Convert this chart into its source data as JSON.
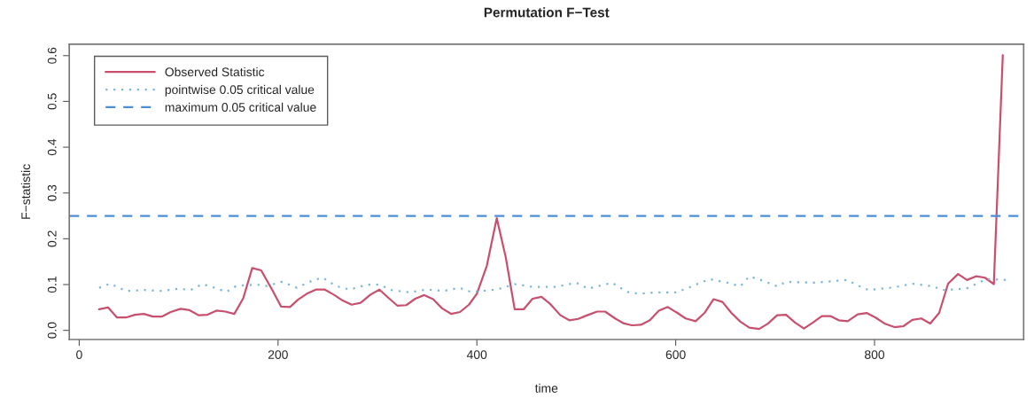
{
  "chart_data": {
    "type": "line",
    "title": "Permutation F−Test",
    "xlabel": "time",
    "ylabel": "F−statistic",
    "xlim": [
      -10,
      950
    ],
    "ylim": [
      -0.02,
      0.625
    ],
    "xticks": [
      0,
      200,
      400,
      600,
      800
    ],
    "yticks": [
      {
        "value": 0,
        "label": "0.0"
      },
      {
        "value": 0.1,
        "label": "0.1"
      },
      {
        "value": 0.2,
        "label": "0.2"
      },
      {
        "value": 0.3,
        "label": "0.3"
      },
      {
        "value": 0.4,
        "label": "0.4"
      },
      {
        "value": 0.5,
        "label": "0.5"
      },
      {
        "value": 0.6,
        "label": "0.6"
      }
    ],
    "grid": false,
    "legend": "top left",
    "marker": "none",
    "series": [
      {
        "name": "Observed Statistic",
        "color": "#c8506e",
        "line_style": "solid",
        "x": [
          20,
          29,
          38,
          47,
          56,
          65,
          74,
          83,
          92,
          102,
          111,
          120,
          129,
          138,
          147,
          156,
          165,
          174,
          183,
          194,
          203,
          212,
          220,
          229,
          238,
          247,
          256,
          265,
          274,
          283,
          293,
          302,
          311,
          320,
          329,
          338,
          347,
          356,
          365,
          374,
          383,
          392,
          400,
          410,
          420,
          429,
          438,
          447,
          456,
          465,
          474,
          484,
          493,
          502,
          511,
          521,
          529,
          539,
          548,
          556,
          565,
          574,
          583,
          592,
          601,
          610,
          620,
          629,
          638,
          647,
          656,
          665,
          674,
          684,
          693,
          702,
          711,
          720,
          729,
          738,
          747,
          756,
          764,
          773,
          783,
          792,
          801,
          810,
          820,
          829,
          838,
          847,
          856,
          865,
          874,
          884,
          893,
          902,
          911,
          920,
          929
        ],
        "values": [
          0.046,
          0.05,
          0.028,
          0.028,
          0.034,
          0.036,
          0.03,
          0.03,
          0.04,
          0.047,
          0.044,
          0.033,
          0.034,
          0.043,
          0.041,
          0.036,
          0.07,
          0.136,
          0.131,
          0.089,
          0.052,
          0.051,
          0.067,
          0.08,
          0.089,
          0.089,
          0.078,
          0.065,
          0.056,
          0.06,
          0.078,
          0.089,
          0.071,
          0.054,
          0.055,
          0.069,
          0.077,
          0.068,
          0.048,
          0.036,
          0.04,
          0.056,
          0.08,
          0.141,
          0.245,
          0.16,
          0.046,
          0.046,
          0.069,
          0.073,
          0.057,
          0.033,
          0.022,
          0.025,
          0.033,
          0.041,
          0.041,
          0.026,
          0.015,
          0.011,
          0.012,
          0.022,
          0.043,
          0.051,
          0.039,
          0.026,
          0.02,
          0.038,
          0.068,
          0.062,
          0.038,
          0.019,
          0.006,
          0.003,
          0.015,
          0.033,
          0.034,
          0.017,
          0.004,
          0.017,
          0.031,
          0.031,
          0.022,
          0.02,
          0.035,
          0.038,
          0.028,
          0.015,
          0.007,
          0.009,
          0.023,
          0.026,
          0.015,
          0.038,
          0.102,
          0.123,
          0.11,
          0.118,
          0.115,
          0.101,
          0.601
        ]
      },
      {
        "name": "pointwise 0.05 critical value",
        "color": "#7ab6dc",
        "line_style": "dotted",
        "x": [
          20,
          31,
          47,
          65,
          83,
          100,
          112,
          124,
          136,
          148,
          158,
          178,
          189,
          204,
          219,
          236,
          245,
          258,
          272,
          290,
          302,
          314,
          332,
          349,
          367,
          382,
          394,
          420,
          438,
          456,
          480,
          500,
          512,
          536,
          551,
          563,
          580,
          601,
          616,
          634,
          652,
          665,
          674,
          687,
          702,
          711,
          740,
          773,
          782,
          794,
          820,
          838,
          859,
          868,
          892,
          900,
          912,
          933
        ],
        "values": [
          0.093,
          0.102,
          0.086,
          0.088,
          0.086,
          0.091,
          0.088,
          0.101,
          0.093,
          0.084,
          0.097,
          0.1,
          0.097,
          0.106,
          0.093,
          0.11,
          0.115,
          0.097,
          0.089,
          0.1,
          0.1,
          0.088,
          0.083,
          0.089,
          0.086,
          0.093,
          0.084,
          0.089,
          0.101,
          0.095,
          0.095,
          0.104,
          0.091,
          0.104,
          0.084,
          0.08,
          0.083,
          0.083,
          0.096,
          0.112,
          0.104,
          0.096,
          0.118,
          0.109,
          0.096,
          0.106,
          0.104,
          0.11,
          0.099,
          0.088,
          0.094,
          0.102,
          0.096,
          0.088,
          0.091,
          0.099,
          0.112,
          0.11
        ]
      }
    ],
    "ref_lines": [
      {
        "axis": "y",
        "value": 0.25,
        "label": "maximum 0.05 critical value",
        "color": "#4a8ed8",
        "line_style": "dashed"
      }
    ]
  }
}
